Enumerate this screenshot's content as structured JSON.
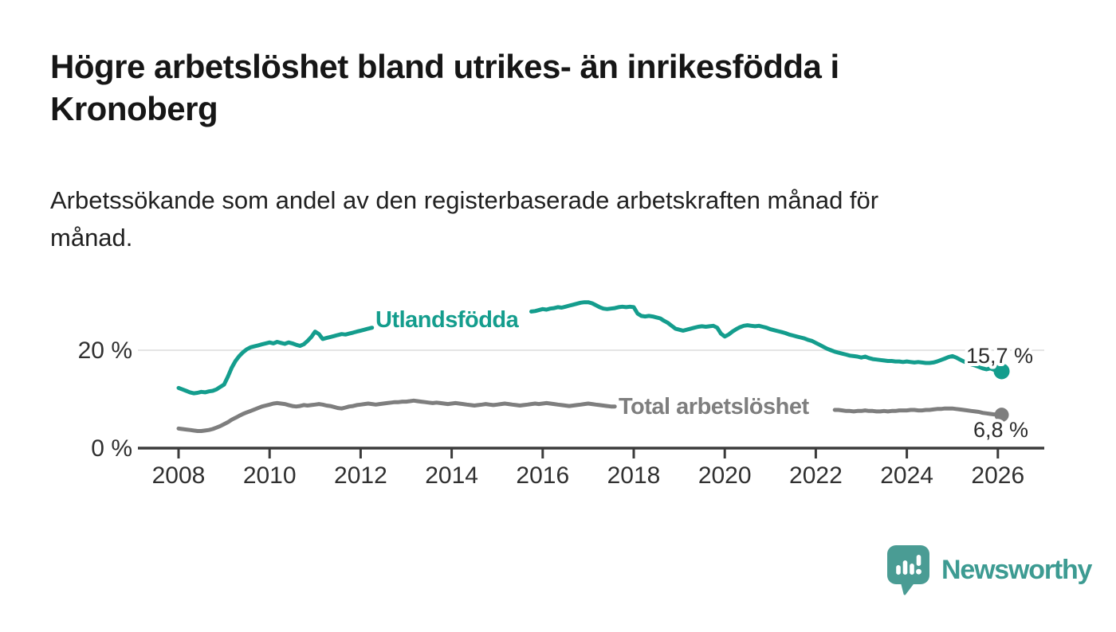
{
  "page": {
    "background": "#ffffff"
  },
  "header": {
    "title": "Högre arbetslöshet bland utrikes- än inrikesfödda i Kronoberg",
    "title_lines": [
      "Högre arbetslöshet bland utrikes- än inrikesfödda i",
      "Kronoberg"
    ],
    "subtitle": "Arbetssökande som andel av den registerbaserade arbetskraften månad för månad.",
    "subtitle_lines": [
      "Arbetssökande som andel av den registerbaserade arbetskraften månad för",
      "månad."
    ]
  },
  "chart_data": {
    "type": "line",
    "title": "Högre arbetslöshet bland utrikes- än inrikesfödda i Kronoberg",
    "unit": "%",
    "x": {
      "interval": "monthly",
      "start_year": 2008,
      "start_month": 1,
      "end_year": 2026,
      "end_month": 2
    },
    "x_ticks": [
      2008,
      2010,
      2012,
      2014,
      2016,
      2018,
      2020,
      2022,
      2024,
      2026
    ],
    "y_ticks": [
      {
        "value": 0,
        "label": "0 %"
      },
      {
        "value": 20,
        "label": "20 %"
      }
    ],
    "gridlines": [
      20
    ],
    "y_range": [
      0,
      32
    ],
    "grid_color": "#dcdcdc",
    "axis_color": "#3b3b3b",
    "tick_label_color": "#303030",
    "value_label_color": "#2b2b2b",
    "legend_position": "inline-labels",
    "series": [
      {
        "name": "Utlandsfödda",
        "color": "#149d8d",
        "end_label": "15,7 %",
        "last_value": 15.7,
        "values": [
          12.3,
          12.0,
          11.7,
          11.4,
          11.2,
          11.3,
          11.5,
          11.4,
          11.6,
          11.7,
          12.0,
          12.5,
          13.0,
          14.6,
          16.4,
          17.8,
          18.8,
          19.6,
          20.2,
          20.6,
          20.8,
          21.0,
          21.2,
          21.4,
          21.6,
          21.4,
          21.7,
          21.5,
          21.3,
          21.6,
          21.4,
          21.1,
          20.9,
          21.2,
          21.9,
          22.7,
          23.8,
          23.3,
          22.3,
          22.5,
          22.7,
          22.9,
          23.1,
          23.3,
          23.2,
          23.4,
          23.6,
          23.8,
          24.0,
          24.2,
          24.4,
          24.6,
          24.7,
          24.8,
          24.9,
          25.0,
          25.1,
          25.2,
          25.3,
          25.4,
          25.5,
          25.6,
          25.7,
          25.8,
          25.9,
          26.0,
          26.0,
          26.1,
          26.1,
          26.2,
          26.2,
          26.3,
          26.3,
          26.4,
          26.4,
          26.5,
          26.5,
          26.6,
          26.6,
          26.7,
          26.7,
          26.8,
          26.9,
          27.0,
          27.0,
          27.1,
          27.2,
          27.3,
          27.4,
          27.5,
          27.6,
          27.7,
          27.8,
          27.9,
          28.0,
          28.2,
          28.4,
          28.3,
          28.5,
          28.6,
          28.8,
          28.7,
          28.9,
          29.1,
          29.3,
          29.5,
          29.7,
          29.8,
          29.8,
          29.6,
          29.2,
          28.8,
          28.5,
          28.4,
          28.5,
          28.6,
          28.8,
          28.9,
          28.8,
          28.9,
          28.8,
          27.5,
          27.0,
          26.9,
          27.0,
          26.9,
          26.7,
          26.5,
          26.0,
          25.6,
          25.0,
          24.4,
          24.2,
          24.0,
          24.2,
          24.4,
          24.6,
          24.8,
          24.9,
          24.8,
          24.9,
          25.0,
          24.6,
          23.4,
          22.8,
          23.2,
          23.8,
          24.3,
          24.7,
          25.0,
          25.1,
          25.0,
          24.9,
          25.0,
          24.8,
          24.6,
          24.3,
          24.1,
          23.9,
          23.7,
          23.5,
          23.2,
          23.0,
          22.8,
          22.6,
          22.4,
          22.1,
          21.9,
          21.5,
          21.1,
          20.7,
          20.3,
          20.0,
          19.7,
          19.5,
          19.3,
          19.1,
          18.9,
          18.8,
          18.7,
          18.5,
          18.7,
          18.4,
          18.2,
          18.1,
          18.0,
          17.9,
          17.8,
          17.8,
          17.7,
          17.7,
          17.6,
          17.7,
          17.6,
          17.5,
          17.6,
          17.5,
          17.4,
          17.4,
          17.5,
          17.7,
          18.0,
          18.3,
          18.6,
          18.8,
          18.5,
          18.1,
          17.7,
          17.4,
          17.1,
          16.9,
          16.6,
          16.3,
          16.1,
          16.3,
          16.0,
          15.9,
          15.7
        ]
      },
      {
        "name": "Total arbetslöshet",
        "color": "#7e7e7e",
        "end_label": "6,8 %",
        "last_value": 6.8,
        "values": [
          4.0,
          3.9,
          3.8,
          3.7,
          3.6,
          3.5,
          3.5,
          3.6,
          3.7,
          3.9,
          4.2,
          4.5,
          4.9,
          5.3,
          5.8,
          6.2,
          6.6,
          7.0,
          7.3,
          7.6,
          7.9,
          8.2,
          8.5,
          8.7,
          8.9,
          9.1,
          9.2,
          9.1,
          9.0,
          8.8,
          8.6,
          8.5,
          8.6,
          8.8,
          8.7,
          8.8,
          8.9,
          9.0,
          8.9,
          8.7,
          8.6,
          8.4,
          8.2,
          8.1,
          8.3,
          8.5,
          8.6,
          8.8,
          8.9,
          9.0,
          9.1,
          9.0,
          8.9,
          9.0,
          9.1,
          9.2,
          9.3,
          9.4,
          9.4,
          9.5,
          9.5,
          9.6,
          9.7,
          9.6,
          9.5,
          9.4,
          9.3,
          9.2,
          9.3,
          9.2,
          9.1,
          9.0,
          9.1,
          9.2,
          9.1,
          9.0,
          8.9,
          8.8,
          8.7,
          8.8,
          8.9,
          9.0,
          8.9,
          8.8,
          8.9,
          9.0,
          9.1,
          9.0,
          8.9,
          8.8,
          8.7,
          8.8,
          8.9,
          9.0,
          9.1,
          9.0,
          9.1,
          9.2,
          9.1,
          9.0,
          8.9,
          8.8,
          8.7,
          8.6,
          8.7,
          8.8,
          8.9,
          9.0,
          9.1,
          9.0,
          8.9,
          8.8,
          8.7,
          8.6,
          8.5,
          8.5,
          8.4,
          8.4,
          8.3,
          8.3,
          8.2,
          8.1,
          8.0,
          8.0,
          8.1,
          8.0,
          7.9,
          7.8,
          7.9,
          7.8,
          7.7,
          7.6,
          7.7,
          7.6,
          7.5,
          7.4,
          7.5,
          7.4,
          7.3,
          7.4,
          7.5,
          7.6,
          7.5,
          7.6,
          7.7,
          7.8,
          8.2,
          8.6,
          8.9,
          9.1,
          8.9,
          8.8,
          8.7,
          8.6,
          8.5,
          8.4,
          8.3,
          8.2,
          8.1,
          8.0,
          7.9,
          7.9,
          7.8,
          7.8,
          7.9,
          7.8,
          7.9,
          7.9,
          7.9,
          7.8,
          7.8,
          7.7,
          7.7,
          7.8,
          7.8,
          7.7,
          7.6,
          7.6,
          7.5,
          7.6,
          7.6,
          7.7,
          7.6,
          7.6,
          7.5,
          7.5,
          7.6,
          7.5,
          7.6,
          7.6,
          7.7,
          7.7,
          7.7,
          7.8,
          7.8,
          7.7,
          7.7,
          7.8,
          7.8,
          7.9,
          8.0,
          8.0,
          8.1,
          8.1,
          8.1,
          8.0,
          7.9,
          7.8,
          7.7,
          7.6,
          7.5,
          7.4,
          7.2,
          7.1,
          7.0,
          6.9,
          6.9,
          6.8
        ]
      }
    ]
  },
  "footer": {
    "brand": "Newsworthy",
    "brand_color": "#3d9b92",
    "logo_color": "#4a9c94"
  }
}
